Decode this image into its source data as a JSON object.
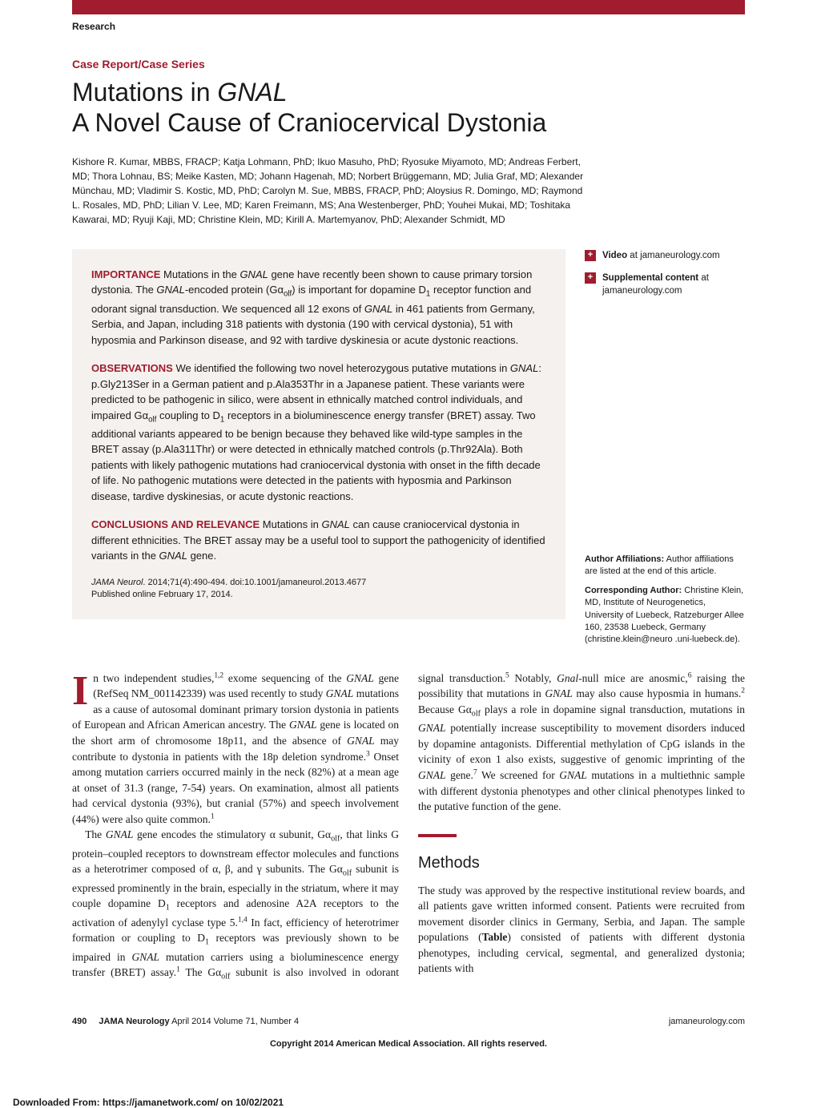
{
  "header": {
    "research_label": "Research",
    "article_type": "Case Report/Case Series",
    "title_line1_pre": "Mutations in ",
    "title_line1_italic": "GNAL",
    "title_line2": "A Novel Cause of Craniocervical Dystonia",
    "authors": "Kishore R. Kumar, MBBS, FRACP; Katja Lohmann, PhD; Ikuo Masuho, PhD; Ryosuke Miyamoto, MD; Andreas Ferbert, MD; Thora Lohnau, BS; Meike Kasten, MD; Johann Hagenah, MD; Norbert Brüggemann, MD; Julia Graf, MD; Alexander Münchau, MD; Vladimir S. Kostic, MD, PhD; Carolyn M. Sue, MBBS, FRACP, PhD; Aloysius R. Domingo, MD; Raymond L. Rosales, MD, PhD; Lilian V. Lee, MD; Karen Freimann, MS; Ana Westenberger, PhD; Youhei Mukai, MD; Toshitaka Kawarai, MD; Ryuji Kaji, MD; Christine Klein, MD; Kirill A. Martemyanov, PhD; Alexander Schmidt, MD"
  },
  "abstract": {
    "importance_label": "IMPORTANCE",
    "importance_text": "  Mutations in the GNAL gene have recently been shown to cause primary torsion dystonia. The GNAL-encoded protein (Gαolf) is important for dopamine D1 receptor function and odorant signal transduction. We sequenced all 12 exons of GNAL in 461 patients from Germany, Serbia, and Japan, including 318 patients with dystonia (190 with cervical dystonia), 51 with hyposmia and Parkinson disease, and 92 with tardive dyskinesia or acute dystonic reactions.",
    "observations_label": "OBSERVATIONS",
    "observations_text": "  We identified the following two novel heterozygous putative mutations in GNAL: p.Gly213Ser in a German patient and p.Ala353Thr in a Japanese patient. These variants were predicted to be pathogenic in silico, were absent in ethnically matched control individuals, and impaired Gαolf coupling to D1 receptors in a bioluminescence energy transfer (BRET) assay. Two additional variants appeared to be benign because they behaved like wild-type samples in the BRET assay (p.Ala311Thr) or were detected in ethnically matched controls (p.Thr92Ala). Both patients with likely pathogenic mutations had craniocervical dystonia with onset in the fifth decade of life. No pathogenic mutations were detected in the patients with hyposmia and Parkinson disease, tardive dyskinesias, or acute dystonic reactions.",
    "conclusions_label": "CONCLUSIONS AND RELEVANCE",
    "conclusions_text": "  Mutations in GNAL can cause craniocervical dystonia in different ethnicities. The BRET assay may be a useful tool to support the pathogenicity of identified variants in the GNAL gene.",
    "citation_ital": "JAMA Neurol",
    "citation_rest": ". 2014;71(4):490-494. doi:10.1001/jamaneurol.2013.4677",
    "citation_pub": "Published online February 17, 2014."
  },
  "sidebar": {
    "video_bold": "Video",
    "video_rest": " at jamaneurology.com",
    "supp_bold": "Supplemental content",
    "supp_rest": " at jamaneurology.com",
    "affil_label": "Author Affiliations:",
    "affil_text": " Author affiliations are listed at the end of this article.",
    "corr_label": "Corresponding Author:",
    "corr_text": " Christine Klein, MD, Institute of Neurogenetics, University of Luebeck, Ratzeburger Allee 160, 23538 Luebeck, Germany (christine.klein@neuro .uni-luebeck.de)."
  },
  "body": {
    "methods_heading": "Methods"
  },
  "footer": {
    "page_number": "490",
    "journal": "JAMA Neurology",
    "issue": "  April 2014  Volume 71, Number 4",
    "url": "jamaneurology.com",
    "copyright": "Copyright 2014 American Medical Association. All rights reserved.",
    "download": "Downloaded From: https://jamanetwork.com/ on 10/02/2021"
  },
  "colors": {
    "brand_red": "#a01c2e",
    "abstract_bg": "#f4f1ee",
    "text": "#1a1a1a"
  }
}
